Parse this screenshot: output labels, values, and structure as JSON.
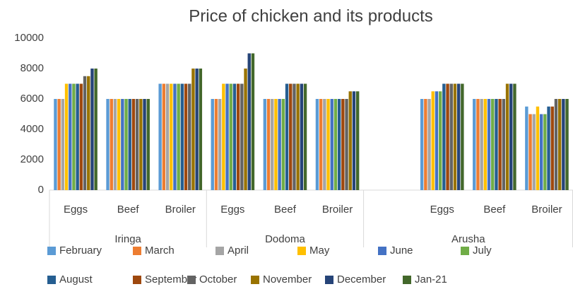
{
  "chart_data": {
    "type": "bar",
    "title": "Price of chicken and its products",
    "groups": [
      {
        "name": "Iringa",
        "categories": [
          "Eggs",
          "Beef",
          "Broiler"
        ]
      },
      {
        "name": "Dodoma",
        "categories": [
          "Eggs",
          "Beef",
          "Broiler"
        ]
      },
      {
        "name": "Arusha",
        "categories": [
          null,
          "Eggs",
          "Beef",
          "Broiler"
        ]
      }
    ],
    "series": [
      {
        "name": "February",
        "color": "#5b9bd5",
        "values": [
          6000,
          6000,
          7000,
          6000,
          6000,
          6000,
          null,
          6000,
          6000,
          5500
        ]
      },
      {
        "name": "March",
        "color": "#ed7d31",
        "values": [
          6000,
          6000,
          7000,
          6000,
          6000,
          6000,
          null,
          6000,
          6000,
          5000
        ]
      },
      {
        "name": "April",
        "color": "#a5a5a5",
        "values": [
          6000,
          6000,
          7000,
          6000,
          6000,
          6000,
          null,
          6000,
          6000,
          5000
        ]
      },
      {
        "name": "May",
        "color": "#ffc000",
        "values": [
          7000,
          6000,
          7000,
          7000,
          6000,
          6000,
          null,
          6500,
          6000,
          5500
        ]
      },
      {
        "name": "June",
        "color": "#4472c4",
        "values": [
          7000,
          6000,
          7000,
          7000,
          6000,
          6000,
          null,
          6500,
          6000,
          5000
        ]
      },
      {
        "name": "July",
        "color": "#70ad47",
        "values": [
          7000,
          6000,
          7000,
          7000,
          6000,
          6000,
          null,
          6500,
          6000,
          5000
        ]
      },
      {
        "name": "August",
        "color": "#255e91",
        "values": [
          7000,
          6000,
          7000,
          7000,
          7000,
          6000,
          null,
          7000,
          6000,
          5500
        ]
      },
      {
        "name": "September",
        "color": "#9e480e",
        "values": [
          7000,
          6000,
          7000,
          7000,
          7000,
          6000,
          null,
          7000,
          6000,
          5500
        ]
      },
      {
        "name": "October",
        "color": "#636363",
        "values": [
          7500,
          6000,
          7000,
          7000,
          7000,
          6000,
          null,
          7000,
          6000,
          6000
        ]
      },
      {
        "name": "November",
        "color": "#997300",
        "values": [
          7500,
          6000,
          8000,
          8000,
          7000,
          6500,
          null,
          7000,
          7000,
          6000
        ]
      },
      {
        "name": "December",
        "color": "#264478",
        "values": [
          8000,
          6000,
          8000,
          9000,
          7000,
          6500,
          null,
          7000,
          7000,
          6000
        ]
      },
      {
        "name": "Jan-21",
        "color": "#43682b",
        "values": [
          8000,
          6000,
          8000,
          9000,
          7000,
          6500,
          null,
          7000,
          7000,
          6000
        ]
      }
    ],
    "ylim": [
      0,
      10000
    ],
    "yticks": [
      0,
      2000,
      4000,
      6000,
      8000,
      10000
    ],
    "grid": false
  }
}
